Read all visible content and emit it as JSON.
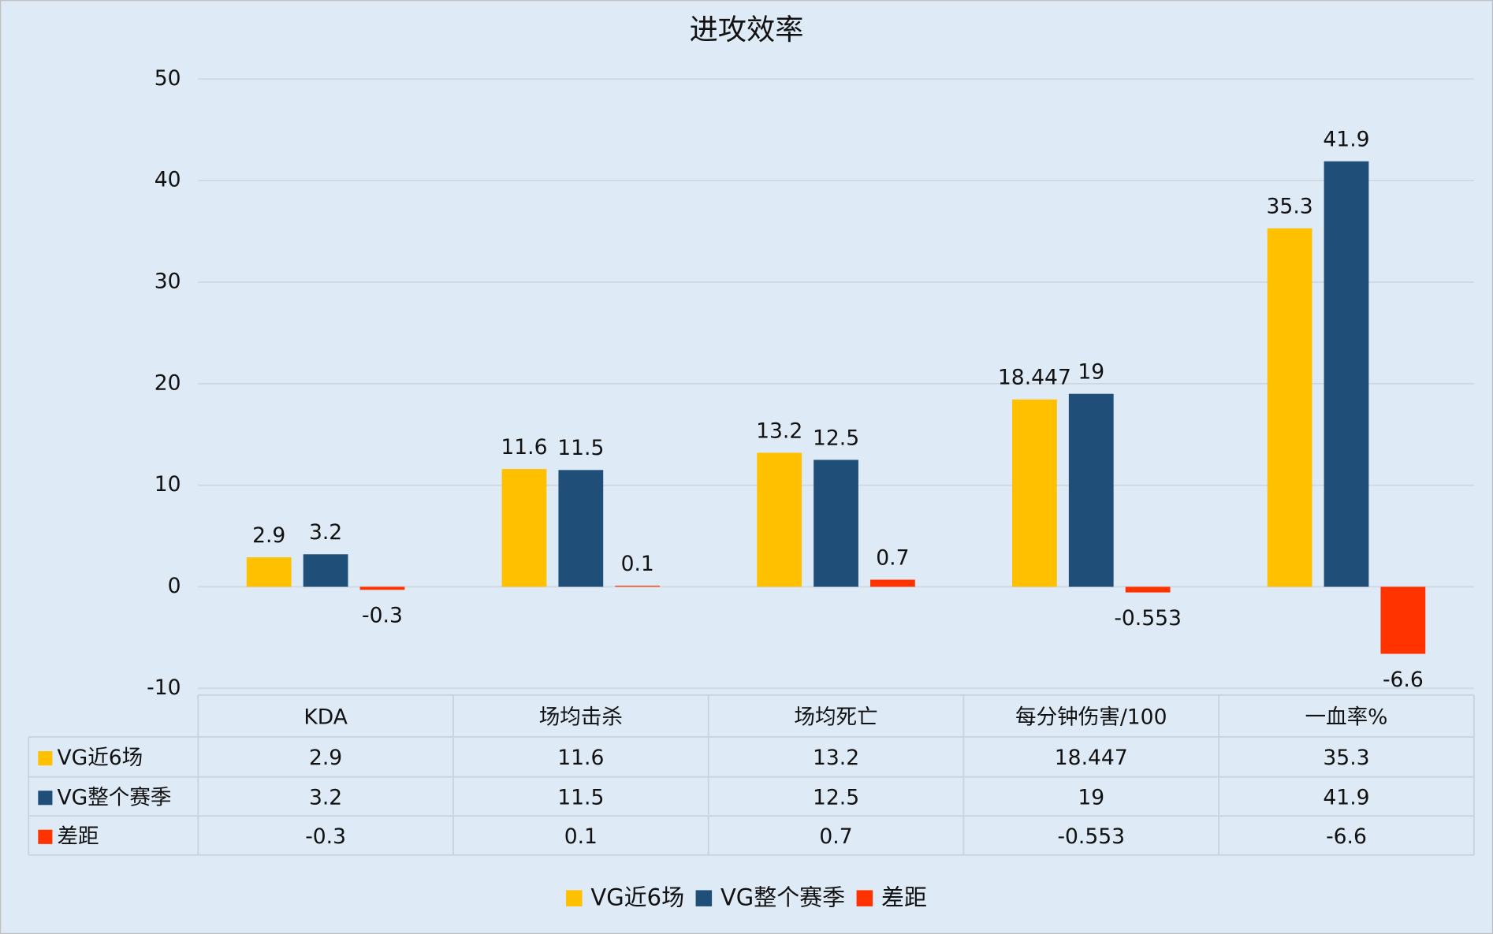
{
  "chart_data": {
    "type": "bar",
    "title": "进攻效率",
    "categories": [
      "KDA",
      "场均击杀",
      "场均死亡",
      "每分钟伤害/100",
      "一血率%"
    ],
    "series": [
      {
        "name": "VG近6场",
        "color": "#ffc000",
        "values": [
          2.9,
          11.6,
          13.2,
          18.447,
          35.3
        ]
      },
      {
        "name": "VG整个赛季",
        "color": "#1f4e79",
        "values": [
          3.2,
          11.5,
          12.5,
          19,
          41.9
        ]
      },
      {
        "name": "差距",
        "color": "#ff3300",
        "values": [
          -0.3,
          0.1,
          0.7,
          -0.553,
          -6.6
        ]
      }
    ],
    "ylim": [
      -10,
      50
    ],
    "yticks": [
      -10,
      0,
      10,
      20,
      30,
      40,
      50
    ],
    "grid": true,
    "data_table": true,
    "legend": "bottom"
  }
}
